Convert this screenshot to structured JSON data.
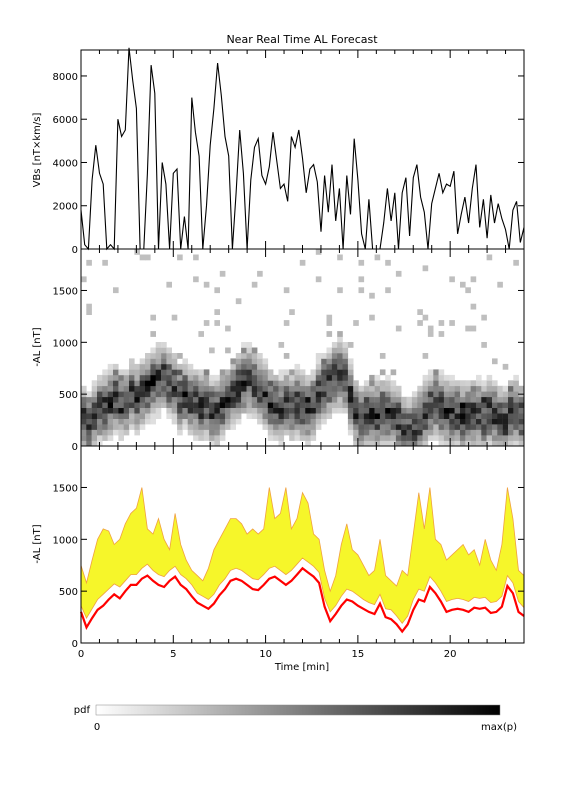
{
  "title": "Near Real Time AL Forecast",
  "colors": {
    "band_fill": "#f6f62a",
    "band_edge": "#f0a040",
    "median": "#ff0000",
    "line": "#000000"
  },
  "chart_data": [
    {
      "type": "line",
      "name": "vbs",
      "ylabel": "VBs [nT×km/s]",
      "ylim": [
        0,
        9200
      ],
      "xlim": [
        0,
        24
      ],
      "yticks": [
        "0",
        "2000",
        "4000",
        "6000",
        "8000"
      ],
      "x": [
        0,
        0.2,
        0.4,
        0.6,
        0.8,
        1.0,
        1.2,
        1.4,
        1.6,
        1.8,
        2.0,
        2.2,
        2.4,
        2.6,
        2.8,
        3.0,
        3.2,
        3.4,
        3.6,
        3.8,
        4.0,
        4.2,
        4.4,
        4.6,
        4.8,
        5.0,
        5.2,
        5.4,
        5.6,
        5.8,
        6.0,
        6.2,
        6.4,
        6.6,
        6.8,
        7.0,
        7.2,
        7.4,
        7.6,
        7.8,
        8.0,
        8.2,
        8.4,
        8.6,
        8.8,
        9.0,
        9.2,
        9.4,
        9.6,
        9.8,
        10.0,
        10.2,
        10.4,
        10.6,
        10.8,
        11.0,
        11.2,
        11.4,
        11.6,
        11.8,
        12.0,
        12.2,
        12.4,
        12.6,
        12.8,
        13.0,
        13.2,
        13.4,
        13.6,
        13.8,
        14.0,
        14.2,
        14.4,
        14.6,
        14.8,
        15.0,
        15.2,
        15.4,
        15.6,
        15.8,
        16.0,
        16.2,
        16.4,
        16.6,
        16.8,
        17.0,
        17.2,
        17.4,
        17.6,
        17.8,
        18.0,
        18.2,
        18.4,
        18.6,
        18.8,
        19.0,
        19.2,
        19.4,
        19.6,
        19.8,
        20.0,
        20.2,
        20.4,
        20.6,
        20.8,
        21.0,
        21.2,
        21.4,
        21.6,
        21.8,
        22.0,
        22.2,
        22.4,
        22.6,
        22.8,
        23.0,
        23.2,
        23.4,
        23.6,
        23.8,
        24.0
      ],
      "values": [
        1800,
        200,
        0,
        3200,
        4800,
        3500,
        3000,
        0,
        200,
        0,
        6000,
        5200,
        5500,
        9300,
        7800,
        6500,
        0,
        0,
        3500,
        8500,
        7200,
        0,
        4000,
        3000,
        0,
        3500,
        3700,
        0,
        1500,
        0,
        7000,
        5400,
        4300,
        0,
        2000,
        4800,
        6500,
        8600,
        7100,
        5200,
        4300,
        0,
        2600,
        5500,
        3500,
        0,
        3200,
        4700,
        5100,
        3400,
        3000,
        3800,
        5400,
        4100,
        2800,
        3000,
        2200,
        5200,
        4700,
        5500,
        4200,
        2600,
        3700,
        3900,
        3100,
        800,
        3400,
        1700,
        3900,
        1300,
        2800,
        0,
        3400,
        1600,
        5100,
        3200,
        700,
        0,
        2300,
        0,
        0,
        0,
        1200,
        2800,
        1300,
        2600,
        0,
        2600,
        3300,
        600,
        3300,
        3900,
        2400,
        1700,
        0,
        2100,
        2800,
        3500,
        2600,
        3000,
        2900,
        3600,
        700,
        1600,
        2400,
        1200,
        2800,
        3900,
        1000,
        2300,
        500,
        2500,
        1200,
        2100,
        1400,
        900,
        0,
        1800,
        2200,
        300,
        1000
      ]
    },
    {
      "type": "heatmap",
      "name": "pdf",
      "ylabel": "-AL [nT]",
      "ylim": [
        0,
        1900
      ],
      "xlim": [
        0,
        24
      ],
      "yticks": [
        "0",
        "500",
        "1000",
        "1500"
      ],
      "center": [
        270,
        170,
        300,
        360,
        370,
        420,
        450,
        400,
        430,
        510,
        460,
        520,
        560,
        600,
        640,
        680,
        610,
        580,
        480,
        500,
        450,
        420,
        380,
        410,
        340,
        320,
        400,
        450,
        520,
        570,
        610,
        640,
        610,
        550,
        470,
        420,
        390,
        360,
        420,
        380,
        410,
        380,
        350,
        400,
        520,
        580,
        610,
        660,
        690,
        640,
        490,
        330,
        270,
        310,
        290,
        300,
        340,
        330,
        300,
        250,
        170,
        140,
        180,
        240,
        310,
        380,
        410,
        370,
        340,
        330,
        310,
        280,
        300,
        310,
        320,
        280,
        330,
        300,
        260,
        240,
        320,
        340,
        280
      ]
    },
    {
      "type": "area",
      "name": "forecast",
      "ylabel": "-AL [nT]",
      "xlabel": "Time [min]",
      "ylim": [
        0,
        1900
      ],
      "xlim": [
        0,
        24
      ],
      "xticks": [
        "0",
        "5",
        "10",
        "15",
        "20"
      ],
      "yticks": [
        "0",
        "500",
        "1000",
        "1500"
      ],
      "x": [
        0,
        0.3,
        0.6,
        0.9,
        1.2,
        1.5,
        1.8,
        2.1,
        2.4,
        2.7,
        3.0,
        3.3,
        3.6,
        3.9,
        4.2,
        4.5,
        4.8,
        5.1,
        5.4,
        5.7,
        6.0,
        6.3,
        6.6,
        6.9,
        7.2,
        7.5,
        7.8,
        8.1,
        8.4,
        8.7,
        9.0,
        9.3,
        9.6,
        9.9,
        10.2,
        10.5,
        10.8,
        11.1,
        11.4,
        11.7,
        12.0,
        12.3,
        12.6,
        12.9,
        13.2,
        13.5,
        13.8,
        14.1,
        14.4,
        14.7,
        15.0,
        15.3,
        15.6,
        15.9,
        16.2,
        16.5,
        16.8,
        17.1,
        17.4,
        17.7,
        18.0,
        18.3,
        18.6,
        18.9,
        19.2,
        19.5,
        19.8,
        20.1,
        20.4,
        20.7,
        21.0,
        21.3,
        21.6,
        21.9,
        22.2,
        22.5,
        22.8,
        23.1,
        23.4,
        23.7,
        24.0
      ],
      "median": [
        300,
        150,
        240,
        320,
        360,
        420,
        470,
        430,
        500,
        560,
        560,
        620,
        650,
        600,
        560,
        540,
        600,
        640,
        560,
        520,
        450,
        390,
        360,
        330,
        380,
        460,
        520,
        600,
        620,
        600,
        560,
        520,
        510,
        560,
        620,
        640,
        600,
        560,
        600,
        660,
        720,
        680,
        640,
        580,
        350,
        210,
        280,
        360,
        420,
        400,
        360,
        330,
        300,
        280,
        380,
        250,
        230,
        180,
        110,
        180,
        320,
        420,
        400,
        540,
        480,
        400,
        300,
        320,
        330,
        320,
        300,
        340,
        330,
        340,
        290,
        300,
        350,
        550,
        480,
        300,
        260
      ],
      "band_low": [
        360,
        240,
        330,
        420,
        470,
        520,
        570,
        540,
        600,
        660,
        660,
        720,
        760,
        700,
        660,
        640,
        700,
        740,
        660,
        620,
        560,
        480,
        450,
        420,
        470,
        560,
        620,
        700,
        720,
        700,
        660,
        620,
        610,
        660,
        720,
        740,
        700,
        660,
        700,
        760,
        820,
        780,
        740,
        680,
        430,
        300,
        360,
        450,
        520,
        500,
        460,
        420,
        390,
        370,
        470,
        330,
        320,
        260,
        190,
        260,
        420,
        520,
        500,
        640,
        580,
        500,
        400,
        420,
        430,
        420,
        400,
        440,
        430,
        440,
        390,
        400,
        450,
        650,
        580,
        400,
        340
      ],
      "band_high": [
        750,
        580,
        800,
        1000,
        1100,
        1080,
        950,
        1000,
        1150,
        1250,
        1300,
        1500,
        1100,
        1050,
        1200,
        1000,
        900,
        1250,
        950,
        800,
        700,
        650,
        600,
        720,
        900,
        1000,
        1100,
        1200,
        1200,
        1150,
        1050,
        1100,
        1050,
        1100,
        1500,
        1200,
        1250,
        1500,
        1100,
        1200,
        1450,
        1350,
        1050,
        1000,
        700,
        500,
        650,
        950,
        1150,
        900,
        850,
        750,
        650,
        700,
        1000,
        650,
        600,
        550,
        700,
        650,
        1050,
        1450,
        1100,
        1500,
        1000,
        950,
        800,
        850,
        900,
        950,
        850,
        900,
        750,
        1000,
        800,
        700,
        950,
        1500,
        1200,
        700,
        650
      ]
    }
  ],
  "colorbar": {
    "label": "pdf",
    "min_label": "0",
    "max_label": "max(p)"
  }
}
